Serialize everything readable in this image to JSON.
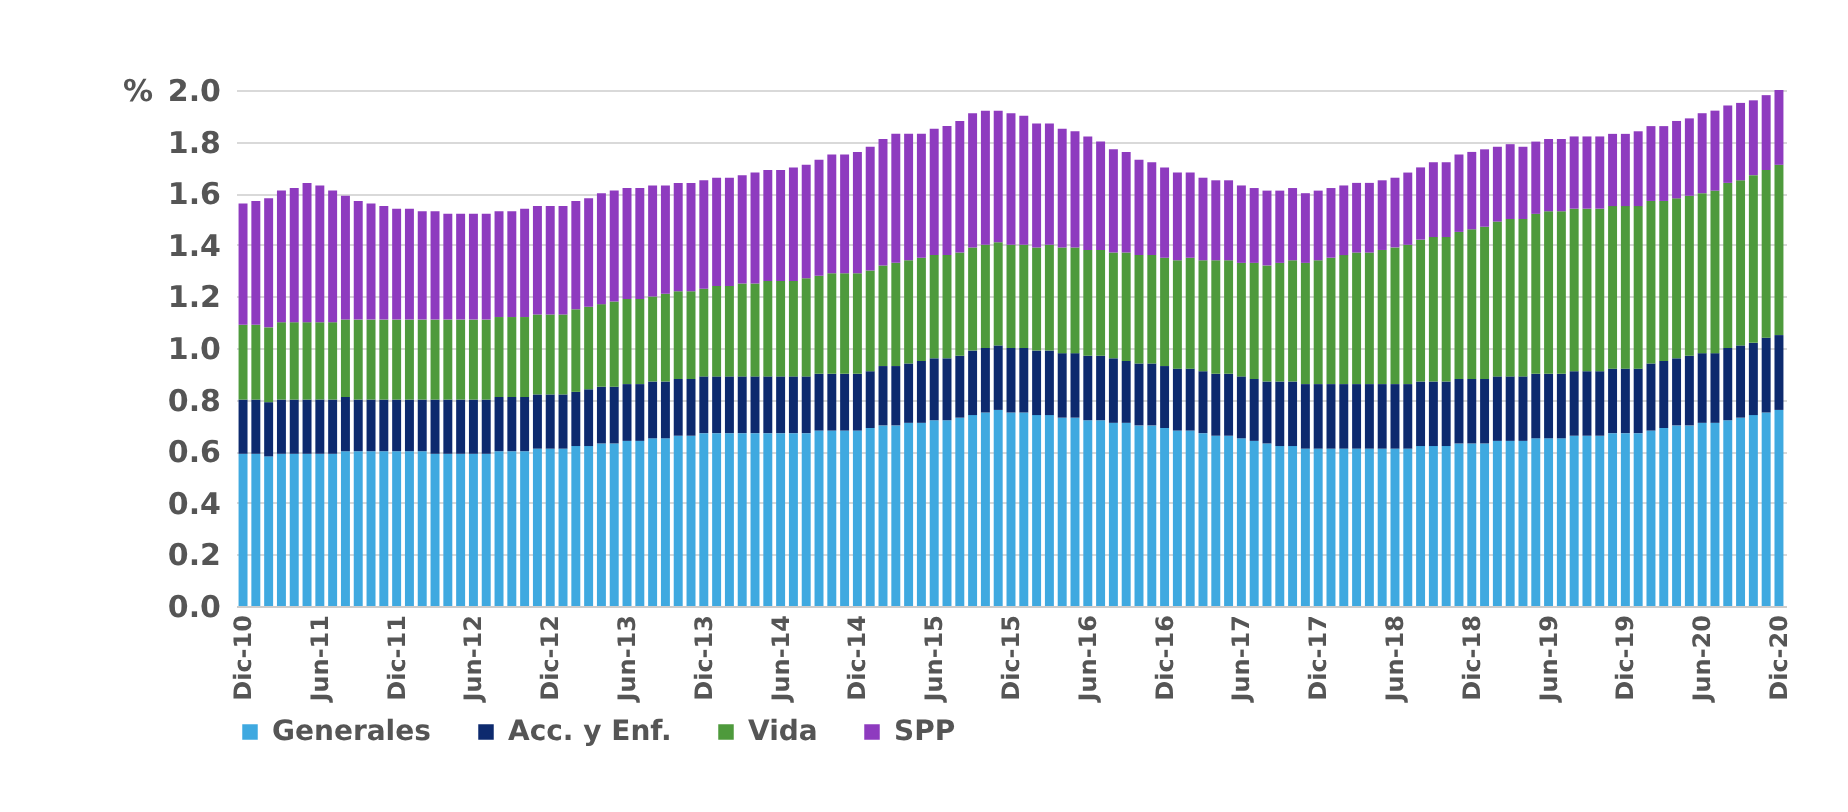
{
  "chart_data": {
    "type": "bar",
    "stacked": true,
    "ylabel": "%",
    "categories": [
      "Dic-10",
      null,
      null,
      null,
      null,
      null,
      "Jun-11",
      null,
      null,
      null,
      null,
      null,
      "Dic-11",
      null,
      null,
      null,
      null,
      null,
      "Jun-12",
      null,
      null,
      null,
      null,
      null,
      "Dic-12",
      null,
      null,
      null,
      null,
      null,
      "Jun-13",
      null,
      null,
      null,
      null,
      null,
      "Dic-13",
      null,
      null,
      null,
      null,
      null,
      "Jun-14",
      null,
      null,
      null,
      null,
      null,
      "Dic-14",
      null,
      null,
      null,
      null,
      null,
      "Jun-15",
      null,
      null,
      null,
      null,
      null,
      "Dic-15",
      null,
      null,
      null,
      null,
      null,
      "Jun-16",
      null,
      null,
      null,
      null,
      null,
      "Dic-16",
      null,
      null,
      null,
      null,
      null,
      "Jun-17",
      null,
      null,
      null,
      null,
      null,
      "Dic-17",
      null,
      null,
      null,
      null,
      null,
      "Jun-18",
      null,
      null,
      null,
      null,
      null,
      "Dic-18",
      null,
      null,
      null,
      null,
      null,
      "Jun-19",
      null,
      null,
      null,
      null,
      null,
      "Dic-19",
      null,
      null,
      null,
      null,
      null,
      "Jun-20",
      null,
      null,
      null,
      null,
      null,
      "Dic-20"
    ],
    "series": [
      {
        "name": "Generales",
        "color": "#3fa9e0",
        "values": [
          0.59,
          0.59,
          0.58,
          0.59,
          0.59,
          0.59,
          0.59,
          0.59,
          0.6,
          0.6,
          0.6,
          0.6,
          0.6,
          0.6,
          0.6,
          0.59,
          0.59,
          0.59,
          0.59,
          0.59,
          0.6,
          0.6,
          0.6,
          0.61,
          0.61,
          0.61,
          0.62,
          0.62,
          0.63,
          0.63,
          0.64,
          0.64,
          0.65,
          0.65,
          0.66,
          0.66,
          0.67,
          0.67,
          0.67,
          0.67,
          0.67,
          0.67,
          0.67,
          0.67,
          0.67,
          0.68,
          0.68,
          0.68,
          0.68,
          0.69,
          0.7,
          0.7,
          0.71,
          0.71,
          0.72,
          0.72,
          0.73,
          0.74,
          0.75,
          0.76,
          0.75,
          0.75,
          0.74,
          0.74,
          0.73,
          0.73,
          0.72,
          0.72,
          0.71,
          0.71,
          0.7,
          0.7,
          0.69,
          0.68,
          0.68,
          0.67,
          0.66,
          0.66,
          0.65,
          0.64,
          0.63,
          0.62,
          0.62,
          0.61,
          0.61,
          0.61,
          0.61,
          0.61,
          0.61,
          0.61,
          0.61,
          0.61,
          0.62,
          0.62,
          0.62,
          0.63,
          0.63,
          0.63,
          0.64,
          0.64,
          0.64,
          0.65,
          0.65,
          0.65,
          0.66,
          0.66,
          0.66,
          0.67,
          0.67,
          0.67,
          0.68,
          0.69,
          0.7,
          0.7,
          0.71,
          0.71,
          0.72,
          0.73,
          0.74,
          0.75,
          0.76
        ]
      },
      {
        "name": "Acc. y Enf.",
        "color": "#0d2a6e",
        "values": [
          0.21,
          0.21,
          0.21,
          0.21,
          0.21,
          0.21,
          0.21,
          0.21,
          0.21,
          0.2,
          0.2,
          0.2,
          0.2,
          0.2,
          0.2,
          0.21,
          0.21,
          0.21,
          0.21,
          0.21,
          0.21,
          0.21,
          0.21,
          0.21,
          0.21,
          0.21,
          0.21,
          0.22,
          0.22,
          0.22,
          0.22,
          0.22,
          0.22,
          0.22,
          0.22,
          0.22,
          0.22,
          0.22,
          0.22,
          0.22,
          0.22,
          0.22,
          0.22,
          0.22,
          0.22,
          0.22,
          0.22,
          0.22,
          0.22,
          0.22,
          0.23,
          0.23,
          0.23,
          0.24,
          0.24,
          0.24,
          0.24,
          0.25,
          0.25,
          0.25,
          0.25,
          0.25,
          0.25,
          0.25,
          0.25,
          0.25,
          0.25,
          0.25,
          0.25,
          0.24,
          0.24,
          0.24,
          0.24,
          0.24,
          0.24,
          0.24,
          0.24,
          0.24,
          0.24,
          0.24,
          0.24,
          0.25,
          0.25,
          0.25,
          0.25,
          0.25,
          0.25,
          0.25,
          0.25,
          0.25,
          0.25,
          0.25,
          0.25,
          0.25,
          0.25,
          0.25,
          0.25,
          0.25,
          0.25,
          0.25,
          0.25,
          0.25,
          0.25,
          0.25,
          0.25,
          0.25,
          0.25,
          0.25,
          0.25,
          0.25,
          0.26,
          0.26,
          0.26,
          0.27,
          0.27,
          0.27,
          0.28,
          0.28,
          0.28,
          0.29,
          0.29
        ]
      },
      {
        "name": "Vida",
        "color": "#4e9a3c",
        "values": [
          0.29,
          0.29,
          0.29,
          0.3,
          0.3,
          0.3,
          0.3,
          0.3,
          0.3,
          0.31,
          0.31,
          0.31,
          0.31,
          0.31,
          0.31,
          0.31,
          0.31,
          0.31,
          0.31,
          0.31,
          0.31,
          0.31,
          0.31,
          0.31,
          0.31,
          0.31,
          0.32,
          0.32,
          0.32,
          0.33,
          0.33,
          0.33,
          0.33,
          0.34,
          0.34,
          0.34,
          0.34,
          0.35,
          0.35,
          0.36,
          0.36,
          0.37,
          0.37,
          0.37,
          0.38,
          0.38,
          0.39,
          0.39,
          0.39,
          0.39,
          0.39,
          0.4,
          0.4,
          0.4,
          0.4,
          0.4,
          0.4,
          0.4,
          0.4,
          0.4,
          0.4,
          0.4,
          0.4,
          0.41,
          0.41,
          0.41,
          0.41,
          0.41,
          0.41,
          0.42,
          0.42,
          0.42,
          0.42,
          0.42,
          0.43,
          0.43,
          0.44,
          0.44,
          0.44,
          0.45,
          0.45,
          0.46,
          0.47,
          0.47,
          0.48,
          0.49,
          0.5,
          0.51,
          0.51,
          0.52,
          0.53,
          0.54,
          0.55,
          0.56,
          0.56,
          0.57,
          0.58,
          0.59,
          0.6,
          0.61,
          0.61,
          0.62,
          0.63,
          0.63,
          0.63,
          0.63,
          0.63,
          0.63,
          0.63,
          0.63,
          0.63,
          0.62,
          0.62,
          0.62,
          0.62,
          0.63,
          0.64,
          0.64,
          0.65,
          0.65,
          0.66
        ]
      },
      {
        "name": "SPP",
        "color": "#8e3bbf",
        "values": [
          0.47,
          0.48,
          0.5,
          0.51,
          0.52,
          0.54,
          0.53,
          0.51,
          0.48,
          0.46,
          0.45,
          0.44,
          0.43,
          0.43,
          0.42,
          0.42,
          0.41,
          0.41,
          0.41,
          0.41,
          0.41,
          0.41,
          0.42,
          0.42,
          0.42,
          0.42,
          0.42,
          0.42,
          0.43,
          0.43,
          0.43,
          0.43,
          0.43,
          0.42,
          0.42,
          0.42,
          0.42,
          0.42,
          0.42,
          0.42,
          0.43,
          0.43,
          0.43,
          0.44,
          0.44,
          0.45,
          0.46,
          0.46,
          0.47,
          0.48,
          0.49,
          0.5,
          0.49,
          0.48,
          0.49,
          0.5,
          0.51,
          0.52,
          0.52,
          0.51,
          0.51,
          0.5,
          0.48,
          0.47,
          0.46,
          0.45,
          0.44,
          0.42,
          0.4,
          0.39,
          0.37,
          0.36,
          0.35,
          0.34,
          0.33,
          0.32,
          0.31,
          0.31,
          0.3,
          0.29,
          0.29,
          0.28,
          0.28,
          0.27,
          0.27,
          0.27,
          0.27,
          0.27,
          0.27,
          0.27,
          0.27,
          0.28,
          0.28,
          0.29,
          0.29,
          0.3,
          0.3,
          0.3,
          0.29,
          0.29,
          0.28,
          0.28,
          0.28,
          0.28,
          0.28,
          0.28,
          0.28,
          0.28,
          0.28,
          0.29,
          0.29,
          0.29,
          0.3,
          0.3,
          0.31,
          0.31,
          0.3,
          0.3,
          0.29,
          0.29,
          0.29
        ]
      }
    ],
    "ylim": [
      0,
      2.0
    ],
    "yticks": [
      {
        "value": 0,
        "label": "0.0"
      },
      0.2,
      0.4,
      0.6,
      0.8,
      {
        "value": 1,
        "label": "1.0"
      },
      1.2,
      1.4,
      1.6,
      1.8,
      {
        "value": 2,
        "label": "2.0"
      }
    ],
    "grid": "y",
    "legend": "bottom"
  }
}
